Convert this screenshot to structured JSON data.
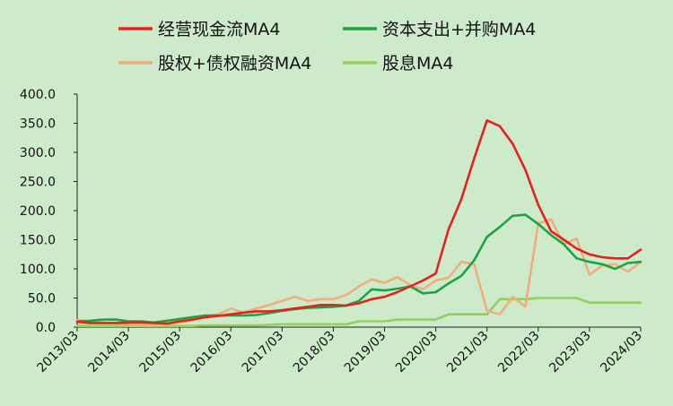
{
  "chart_data": {
    "type": "line",
    "title": "",
    "xlabel": "",
    "ylabel": "",
    "ylim": [
      0,
      400
    ],
    "yticks": [
      "0.0",
      "50.0",
      "100.0",
      "150.0",
      "200.0",
      "250.0",
      "300.0",
      "350.0",
      "400.0"
    ],
    "xtick_labels": [
      "2013/03",
      "2014/03",
      "2015/03",
      "2016/03",
      "2017/03",
      "2018/03",
      "2019/03",
      "2020/03",
      "2021/03",
      "2022/03",
      "2023/03",
      "2024/03"
    ],
    "grid": false,
    "legend_position": "top",
    "x": [
      "2013/03",
      "2013/06",
      "2013/09",
      "2013/12",
      "2014/03",
      "2014/06",
      "2014/09",
      "2014/12",
      "2015/03",
      "2015/06",
      "2015/09",
      "2015/12",
      "2016/03",
      "2016/06",
      "2016/09",
      "2016/12",
      "2017/03",
      "2017/06",
      "2017/09",
      "2017/12",
      "2018/03",
      "2018/06",
      "2018/09",
      "2018/12",
      "2019/03",
      "2019/06",
      "2019/09",
      "2019/12",
      "2020/03",
      "2020/06",
      "2020/09",
      "2020/12",
      "2021/03",
      "2021/06",
      "2021/09",
      "2021/12",
      "2022/03",
      "2022/06",
      "2022/09",
      "2022/12",
      "2023/03",
      "2023/06",
      "2023/09",
      "2023/12",
      "2024/03"
    ],
    "series": [
      {
        "name": "经营现金流MA4",
        "color": "#e8201c",
        "values": [
          9,
          7,
          7,
          7,
          8,
          8,
          7,
          6,
          10,
          13,
          17,
          19,
          22,
          25,
          27,
          27,
          29,
          32,
          35,
          38,
          38,
          37,
          41,
          48,
          52,
          60,
          70,
          80,
          92,
          168,
          220,
          290,
          355,
          345,
          315,
          270,
          210,
          165,
          150,
          135,
          125,
          120,
          118,
          118,
          133
        ]
      },
      {
        "name": "资本支出+并购MA4",
        "color": "#1aa544",
        "values": [
          10,
          11,
          13,
          13,
          10,
          10,
          8,
          11,
          14,
          17,
          20,
          20,
          20,
          20,
          21,
          24,
          28,
          31,
          33,
          34,
          35,
          37,
          45,
          65,
          63,
          66,
          70,
          58,
          60,
          75,
          88,
          115,
          155,
          172,
          191,
          193,
          177,
          158,
          142,
          118,
          112,
          108,
          100,
          110,
          112
        ]
      },
      {
        "name": "股权+债权融资MA4",
        "color": "#f2ad7e",
        "values": [
          12,
          10,
          8,
          6,
          4,
          3,
          3,
          5,
          8,
          12,
          18,
          22,
          32,
          25,
          32,
          38,
          45,
          52,
          45,
          48,
          48,
          55,
          70,
          82,
          76,
          86,
          72,
          65,
          80,
          85,
          112,
          108,
          28,
          22,
          52,
          35,
          178,
          185,
          142,
          152,
          90,
          106,
          108,
          95,
          112
        ]
      },
      {
        "name": "股息MA4",
        "color": "#93d15c",
        "values": [
          2,
          2,
          2,
          2,
          2,
          2,
          2,
          2,
          2,
          2,
          3,
          3,
          3,
          3,
          3,
          4,
          5,
          5,
          5,
          5,
          5,
          5,
          10,
          10,
          10,
          13,
          13,
          13,
          13,
          22,
          22,
          22,
          22,
          48,
          48,
          48,
          50,
          50,
          50,
          50,
          42,
          42,
          42,
          42,
          42
        ]
      }
    ]
  }
}
